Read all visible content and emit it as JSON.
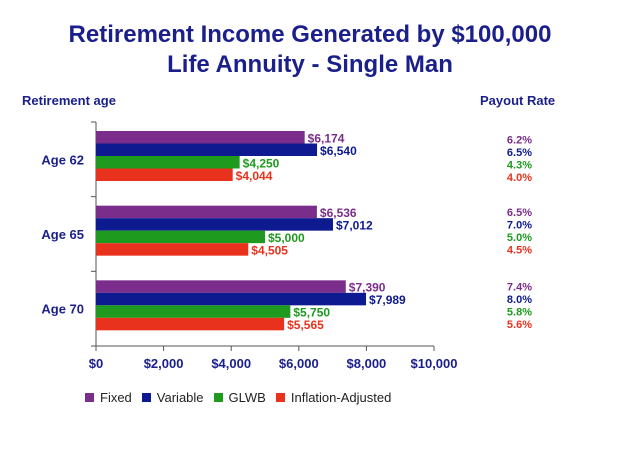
{
  "title_line1": "Retirement Income Generated by $100,000",
  "title_line2": "Life Annuity - Single Man",
  "left_header": "Retirement age",
  "right_header": "Payout Rate",
  "colors": {
    "Fixed": "#7b2d8b",
    "Variable": "#0e1a8f",
    "GLWB": "#1e9a1e",
    "Inflation-Adjusted": "#e8321e",
    "title": "#1a1f8c"
  },
  "chart_data": {
    "type": "bar",
    "orientation": "horizontal",
    "title": "Retirement Income Generated by $100,000 Life Annuity - Single Man",
    "categories": [
      "Age 62",
      "Age 65",
      "Age 70"
    ],
    "series": [
      {
        "name": "Fixed",
        "values": [
          6174,
          6536,
          7390
        ],
        "labels": [
          "$6,174",
          "$6,536",
          "$7,390"
        ],
        "rates": [
          "6.2%",
          "6.5%",
          "7.4%"
        ]
      },
      {
        "name": "Variable",
        "values": [
          6540,
          7012,
          7989
        ],
        "labels": [
          "$6,540",
          "$7,012",
          "$7,989"
        ],
        "rates": [
          "6.5%",
          "7.0%",
          "8.0%"
        ]
      },
      {
        "name": "GLWB",
        "values": [
          4250,
          5000,
          5750
        ],
        "labels": [
          "$4,250",
          "$5,000",
          "$5,750"
        ],
        "rates": [
          "4.3%",
          "5.0%",
          "5.8%"
        ]
      },
      {
        "name": "Inflation-Adjusted",
        "values": [
          4044,
          4505,
          5565
        ],
        "labels": [
          "$4,044",
          "$4,505",
          "$5,565"
        ],
        "rates": [
          "4.0%",
          "4.5%",
          "5.6%"
        ]
      }
    ],
    "xlim": [
      0,
      10000
    ],
    "xticks": [
      0,
      2000,
      4000,
      6000,
      8000,
      10000
    ],
    "xtick_labels": [
      "$0",
      "$2,000",
      "$4,000",
      "$6,000",
      "$8,000",
      "$10,000"
    ],
    "grid": false,
    "legend_position": "bottom"
  }
}
